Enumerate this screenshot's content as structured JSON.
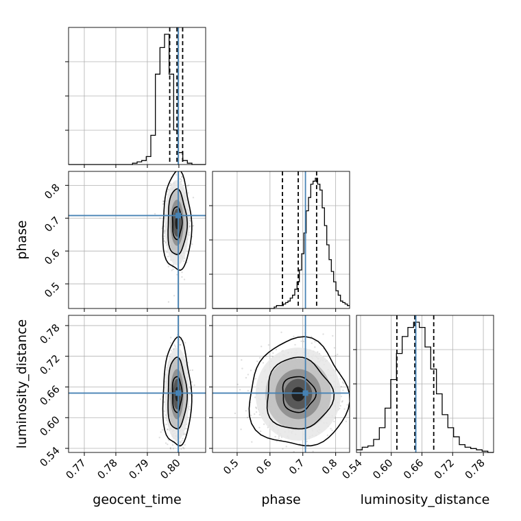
{
  "chart_data": {
    "type": "corner",
    "parameters": [
      "geocent_time",
      "phase",
      "luminosity_distance"
    ],
    "truths": {
      "geocent_time": 0.7998,
      "phase": 0.708,
      "luminosity_distance": 0.648
    },
    "quantiles": {
      "geocent_time": [
        0.7971,
        0.7994,
        0.8012
      ],
      "phase": [
        0.638,
        0.686,
        0.742
      ],
      "luminosity_distance": [
        0.611,
        0.646,
        0.683
      ]
    },
    "ranges": {
      "geocent_time": [
        0.765,
        0.8085
      ],
      "phase": [
        0.425,
        0.8425
      ],
      "luminosity_distance": [
        0.532,
        0.8
      ]
    },
    "ticks": {
      "geocent_time": {
        "values": [
          0.77,
          0.78,
          0.79,
          0.8
        ],
        "labels": [
          "0.77",
          "0.78",
          "0.79",
          "0.80"
        ]
      },
      "phase": {
        "values": [
          0.5,
          0.6,
          0.7,
          0.8
        ],
        "labels": [
          "0.5",
          "0.6",
          "0.7",
          "0.8"
        ]
      },
      "luminosity_distance": {
        "values": [
          0.54,
          0.6,
          0.66,
          0.72,
          0.78
        ],
        "labels": [
          "0.54",
          "0.60",
          "0.66",
          "0.72",
          "0.78"
        ]
      }
    },
    "histograms": {
      "geocent_time": {
        "range": [
          0.765,
          0.8085
        ],
        "counts": [
          0,
          0,
          0,
          0,
          0,
          0,
          0,
          0,
          0,
          0,
          0,
          0,
          0,
          0,
          1,
          2,
          3,
          6,
          22,
          68,
          88,
          98,
          68,
          26,
          9,
          3,
          1,
          0,
          0,
          0
        ]
      },
      "phase": {
        "range": [
          0.425,
          0.8425
        ],
        "counts": [
          0,
          0,
          0,
          0,
          0,
          0,
          0,
          0,
          0,
          0,
          0,
          0,
          0,
          0,
          0,
          0,
          0,
          0,
          0,
          0,
          0,
          0,
          0,
          0,
          0,
          0,
          0,
          1,
          2,
          2,
          2,
          3,
          4,
          5,
          7,
          9,
          13,
          18,
          26,
          37,
          51,
          66,
          75,
          84,
          86,
          88,
          84,
          80,
          68,
          56,
          43,
          33,
          25,
          18,
          12,
          9,
          5,
          4,
          3,
          2
        ]
      },
      "luminosity_distance": {
        "range": [
          0.532,
          0.8
        ],
        "counts": [
          2,
          4,
          5,
          10,
          19,
          34,
          56,
          76,
          89,
          96,
          100,
          96,
          81,
          64,
          45,
          29,
          19,
          12,
          6,
          4,
          3,
          2,
          1,
          0
        ]
      }
    },
    "contour_levels": [
      "39%",
      "86%",
      "99%"
    ],
    "grid": true
  }
}
